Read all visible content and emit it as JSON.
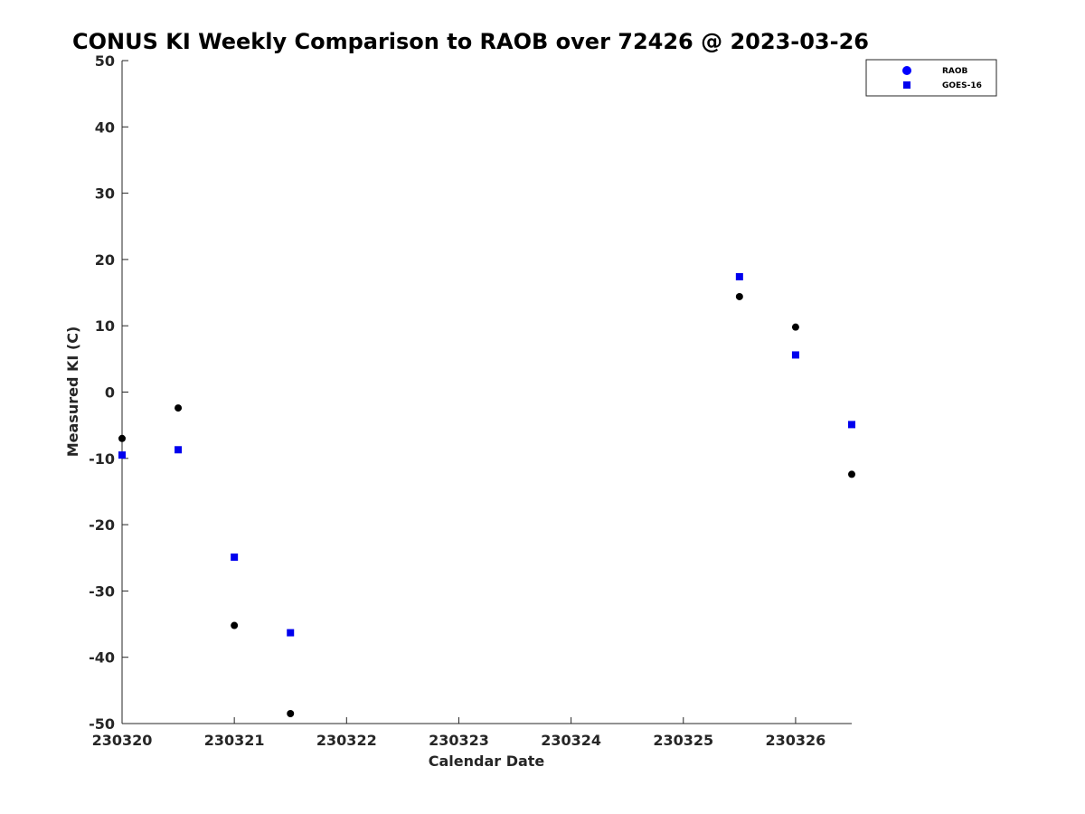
{
  "chart_data": {
    "type": "scatter",
    "title": "CONUS KI Weekly Comparison to RAOB over 72426 @ 2023-03-26",
    "xlabel": "Calendar Date",
    "ylabel": "Measured KI (C)",
    "xlim": [
      0,
      6.5
    ],
    "ylim": [
      -50,
      50
    ],
    "x_ticks": [
      {
        "value": 0,
        "label": "230320"
      },
      {
        "value": 1,
        "label": "230321"
      },
      {
        "value": 2,
        "label": "230322"
      },
      {
        "value": 3,
        "label": "230323"
      },
      {
        "value": 4,
        "label": "230324"
      },
      {
        "value": 5,
        "label": "230325"
      },
      {
        "value": 6,
        "label": "230326"
      }
    ],
    "y_ticks": [
      50,
      40,
      30,
      20,
      10,
      0,
      -10,
      -20,
      -30,
      -40,
      -50
    ],
    "grid": false,
    "legend_position": "top-right",
    "series": [
      {
        "name": "RAOB",
        "marker": "circle",
        "color": "#000000",
        "legend_color": "#0000ff",
        "points": [
          {
            "x": 0.0,
            "y": -7.0
          },
          {
            "x": 0.5,
            "y": -2.4
          },
          {
            "x": 1.0,
            "y": -35.2
          },
          {
            "x": 1.5,
            "y": -48.5
          },
          {
            "x": 5.5,
            "y": 14.4
          },
          {
            "x": 6.0,
            "y": 9.8
          },
          {
            "x": 6.5,
            "y": -12.4
          }
        ]
      },
      {
        "name": "GOES-16",
        "marker": "square",
        "color": "#0000ee",
        "legend_color": "#0000ee",
        "points": [
          {
            "x": 0.0,
            "y": -9.5
          },
          {
            "x": 0.5,
            "y": -8.7
          },
          {
            "x": 1.0,
            "y": -24.9
          },
          {
            "x": 1.5,
            "y": -36.3
          },
          {
            "x": 5.5,
            "y": 17.4
          },
          {
            "x": 6.0,
            "y": 5.6
          },
          {
            "x": 6.5,
            "y": -4.9
          }
        ]
      }
    ]
  }
}
